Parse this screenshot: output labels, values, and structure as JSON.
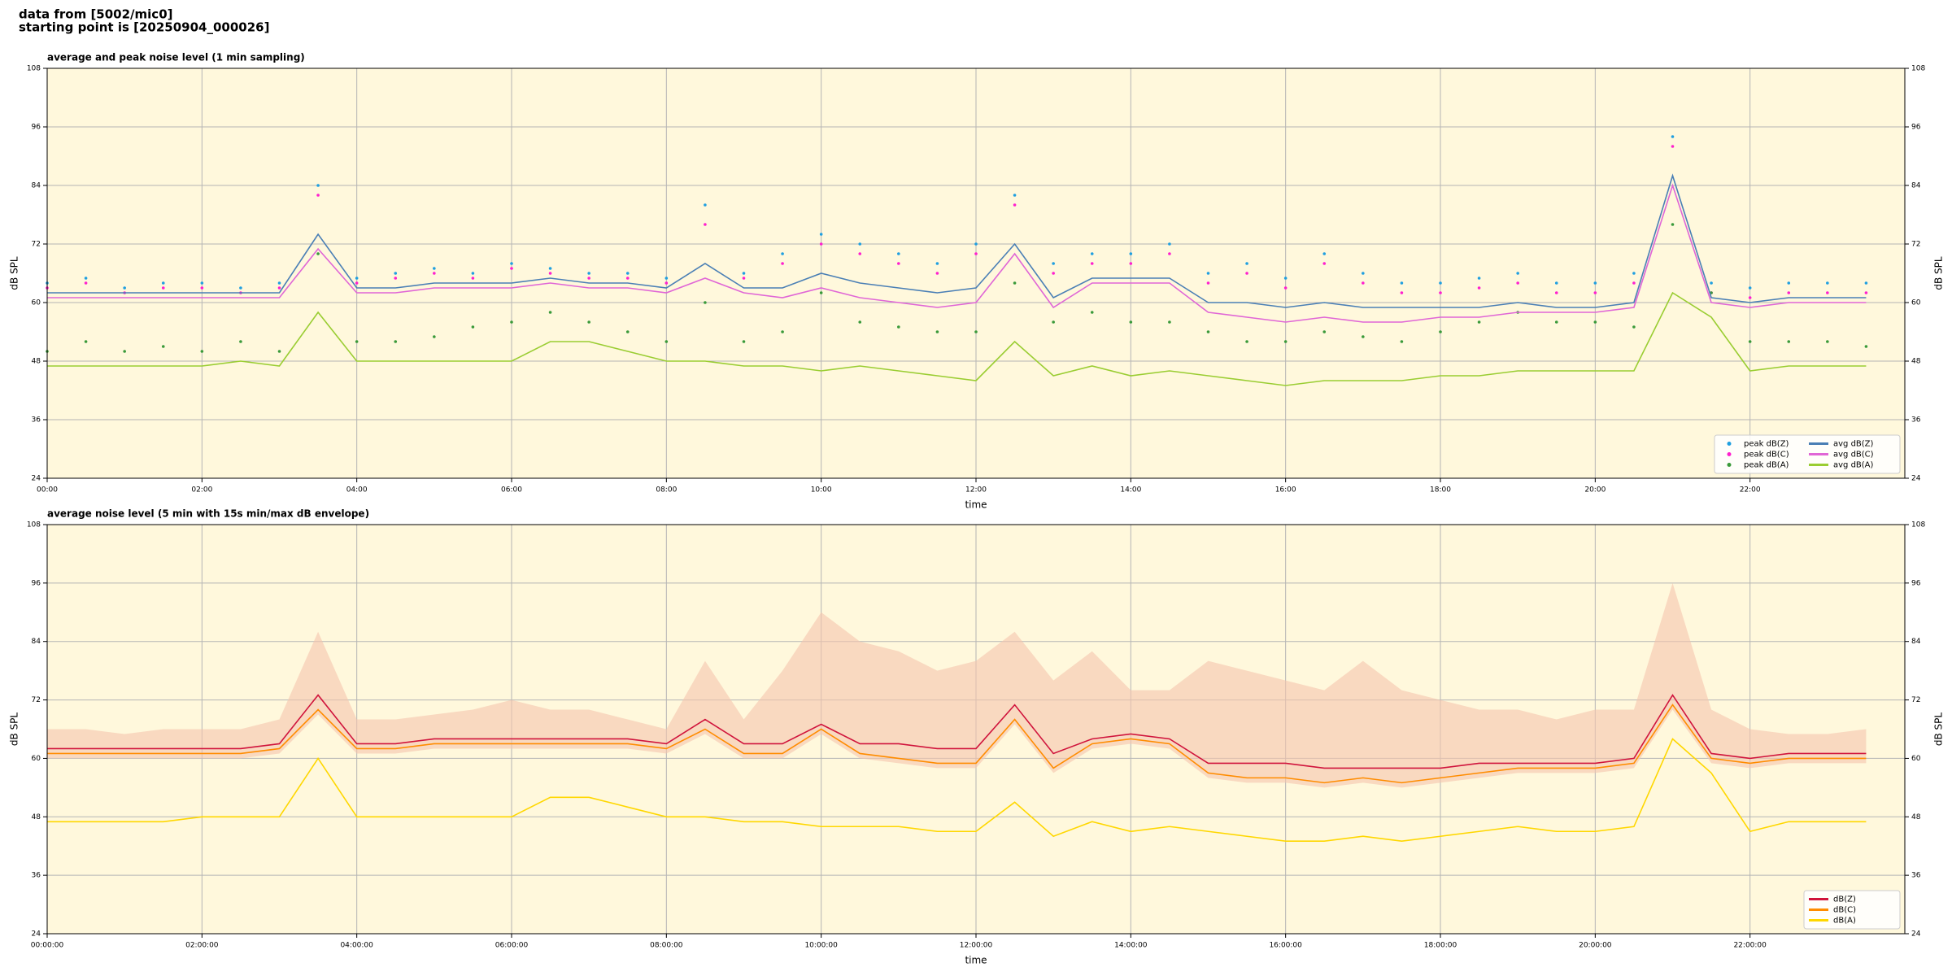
{
  "header": {
    "line1": "data from [5002/mic0]",
    "line2": "starting point is [20250904_000026]"
  },
  "chart_data": [
    {
      "type": "line",
      "title": "average and peak noise level (1 min sampling)",
      "xlabel": "time",
      "ylabel": "dB SPL",
      "x": [
        0,
        0.5,
        1,
        1.5,
        2,
        2.5,
        3,
        3.5,
        4,
        4.5,
        5,
        5.5,
        6,
        6.5,
        7,
        7.5,
        8,
        8.5,
        9,
        9.5,
        10,
        10.5,
        11,
        11.5,
        12,
        12.5,
        13,
        13.5,
        14,
        14.5,
        15,
        15.5,
        16,
        16.5,
        17,
        17.5,
        18,
        18.5,
        19,
        19.5,
        20,
        20.5,
        21,
        21.5,
        22,
        22.5,
        23,
        23.5
      ],
      "xlim": [
        0,
        24
      ],
      "xticks": [
        {
          "value": 0,
          "label": "00:00"
        },
        {
          "value": 2,
          "label": "02:00"
        },
        {
          "value": 4,
          "label": "04:00"
        },
        {
          "value": 6,
          "label": "06:00"
        },
        {
          "value": 8,
          "label": "08:00"
        },
        {
          "value": 10,
          "label": "10:00"
        },
        {
          "value": 12,
          "label": "12:00"
        },
        {
          "value": 14,
          "label": "14:00"
        },
        {
          "value": 16,
          "label": "16:00"
        },
        {
          "value": 18,
          "label": "18:00"
        },
        {
          "value": 20,
          "label": "20:00"
        },
        {
          "value": 22,
          "label": "22:00"
        }
      ],
      "ylim": [
        24,
        108
      ],
      "yticks": [
        24,
        36,
        48,
        60,
        72,
        84,
        96,
        108
      ],
      "grid": true,
      "legend": "lower right",
      "legend_columns": 2,
      "series": [
        {
          "name": "peak dB(Z)",
          "type": "scatter",
          "color": "#1f9fe0",
          "values": [
            64,
            65,
            63,
            64,
            64,
            63,
            64,
            84,
            65,
            66,
            67,
            66,
            68,
            67,
            66,
            66,
            65,
            80,
            66,
            70,
            74,
            72,
            70,
            68,
            72,
            82,
            68,
            70,
            70,
            72,
            66,
            68,
            65,
            70,
            66,
            64,
            64,
            65,
            66,
            64,
            64,
            66,
            94,
            64,
            63,
            64,
            64,
            64
          ]
        },
        {
          "name": "peak dB(C)",
          "type": "scatter",
          "color": "#ff1fce",
          "values": [
            63,
            64,
            62,
            63,
            63,
            62,
            63,
            82,
            64,
            65,
            66,
            65,
            67,
            66,
            65,
            65,
            64,
            76,
            65,
            68,
            72,
            70,
            68,
            66,
            70,
            80,
            66,
            68,
            68,
            70,
            64,
            66,
            63,
            68,
            64,
            62,
            62,
            63,
            64,
            62,
            62,
            64,
            92,
            62,
            61,
            62,
            62,
            62
          ]
        },
        {
          "name": "peak dB(A)",
          "type": "scatter",
          "color": "#3a9a3a",
          "values": [
            50,
            52,
            50,
            51,
            50,
            52,
            50,
            70,
            52,
            52,
            53,
            55,
            56,
            58,
            56,
            54,
            52,
            60,
            52,
            54,
            62,
            56,
            55,
            54,
            54,
            64,
            56,
            58,
            56,
            56,
            54,
            52,
            52,
            54,
            53,
            52,
            54,
            56,
            58,
            56,
            56,
            55,
            76,
            62,
            52,
            52,
            52,
            51
          ]
        },
        {
          "name": "avg dB(Z)",
          "type": "line",
          "color": "#4a7fb5",
          "values": [
            62,
            62,
            62,
            62,
            62,
            62,
            62,
            74,
            63,
            63,
            64,
            64,
            64,
            65,
            64,
            64,
            63,
            68,
            63,
            63,
            66,
            64,
            63,
            62,
            63,
            72,
            61,
            65,
            65,
            65,
            60,
            60,
            59,
            60,
            59,
            59,
            59,
            59,
            60,
            59,
            59,
            60,
            86,
            61,
            60,
            61,
            61,
            61
          ]
        },
        {
          "name": "avg dB(C)",
          "type": "line",
          "color": "#e066d6",
          "values": [
            61,
            61,
            61,
            61,
            61,
            61,
            61,
            71,
            62,
            62,
            63,
            63,
            63,
            64,
            63,
            63,
            62,
            65,
            62,
            61,
            63,
            61,
            60,
            59,
            60,
            70,
            59,
            64,
            64,
            64,
            58,
            57,
            56,
            57,
            56,
            56,
            57,
            57,
            58,
            58,
            58,
            59,
            84,
            60,
            59,
            60,
            60,
            60
          ]
        },
        {
          "name": "avg dB(A)",
          "type": "line",
          "color": "#9acd32",
          "values": [
            47,
            47,
            47,
            47,
            47,
            48,
            47,
            58,
            48,
            48,
            48,
            48,
            48,
            52,
            52,
            50,
            48,
            48,
            47,
            47,
            46,
            47,
            46,
            45,
            44,
            52,
            45,
            47,
            45,
            46,
            45,
            44,
            43,
            44,
            44,
            44,
            45,
            45,
            46,
            46,
            46,
            46,
            62,
            57,
            46,
            47,
            47,
            47
          ]
        }
      ]
    },
    {
      "type": "line",
      "title": "average noise level (5 min with 15s min/max dB envelope)",
      "xlabel": "time",
      "ylabel": "dB SPL",
      "x": [
        0,
        0.5,
        1,
        1.5,
        2,
        2.5,
        3,
        3.5,
        4,
        4.5,
        5,
        5.5,
        6,
        6.5,
        7,
        7.5,
        8,
        8.5,
        9,
        9.5,
        10,
        10.5,
        11,
        11.5,
        12,
        12.5,
        13,
        13.5,
        14,
        14.5,
        15,
        15.5,
        16,
        16.5,
        17,
        17.5,
        18,
        18.5,
        19,
        19.5,
        20,
        20.5,
        21,
        21.5,
        22,
        22.5,
        23,
        23.5
      ],
      "xlim": [
        0,
        24
      ],
      "xticks": [
        {
          "value": 0,
          "label": "00:00:00"
        },
        {
          "value": 2,
          "label": "02:00:00"
        },
        {
          "value": 4,
          "label": "04:00:00"
        },
        {
          "value": 6,
          "label": "06:00:00"
        },
        {
          "value": 8,
          "label": "08:00:00"
        },
        {
          "value": 10,
          "label": "10:00:00"
        },
        {
          "value": 12,
          "label": "12:00:00"
        },
        {
          "value": 14,
          "label": "14:00:00"
        },
        {
          "value": 16,
          "label": "16:00:00"
        },
        {
          "value": 18,
          "label": "18:00:00"
        },
        {
          "value": 20,
          "label": "20:00:00"
        },
        {
          "value": 22,
          "label": "22:00:00"
        }
      ],
      "ylim": [
        24,
        108
      ],
      "yticks": [
        24,
        36,
        48,
        60,
        72,
        84,
        96,
        108
      ],
      "grid": true,
      "legend": "lower right",
      "legend_columns": 1,
      "envelope": {
        "color": "#f5c4ae",
        "max": [
          66,
          66,
          65,
          66,
          66,
          66,
          68,
          86,
          68,
          68,
          69,
          70,
          72,
          70,
          70,
          68,
          66,
          80,
          68,
          78,
          90,
          84,
          82,
          78,
          80,
          86,
          76,
          82,
          74,
          74,
          80,
          78,
          76,
          74,
          80,
          74,
          72,
          70,
          70,
          68,
          70,
          70,
          96,
          70,
          66,
          65,
          65,
          66
        ],
        "min": [
          60,
          60,
          60,
          60,
          60,
          60,
          61,
          69,
          61,
          61,
          62,
          62,
          62,
          62,
          62,
          62,
          61,
          65,
          60,
          60,
          65,
          60,
          59,
          58,
          58,
          67,
          57,
          62,
          63,
          62,
          56,
          55,
          55,
          54,
          55,
          54,
          55,
          56,
          57,
          57,
          57,
          58,
          70,
          59,
          58,
          59,
          59,
          59
        ]
      },
      "series": [
        {
          "name": "dB(Z)",
          "type": "line",
          "color": "#d0143c",
          "values": [
            62,
            62,
            62,
            62,
            62,
            62,
            63,
            73,
            63,
            63,
            64,
            64,
            64,
            64,
            64,
            64,
            63,
            68,
            63,
            63,
            67,
            63,
            63,
            62,
            62,
            71,
            61,
            64,
            65,
            64,
            59,
            59,
            59,
            58,
            58,
            58,
            58,
            59,
            59,
            59,
            59,
            60,
            73,
            61,
            60,
            61,
            61,
            61
          ]
        },
        {
          "name": "dB(C)",
          "type": "line",
          "color": "#ff8c00",
          "values": [
            61,
            61,
            61,
            61,
            61,
            61,
            62,
            70,
            62,
            62,
            63,
            63,
            63,
            63,
            63,
            63,
            62,
            66,
            61,
            61,
            66,
            61,
            60,
            59,
            59,
            68,
            58,
            63,
            64,
            63,
            57,
            56,
            56,
            55,
            56,
            55,
            56,
            57,
            58,
            58,
            58,
            59,
            71,
            60,
            59,
            60,
            60,
            60
          ]
        },
        {
          "name": "dB(A)",
          "type": "line",
          "color": "#ffd700",
          "values": [
            47,
            47,
            47,
            47,
            48,
            48,
            48,
            60,
            48,
            48,
            48,
            48,
            48,
            52,
            52,
            50,
            48,
            48,
            47,
            47,
            46,
            46,
            46,
            45,
            45,
            51,
            44,
            47,
            45,
            46,
            45,
            44,
            43,
            43,
            44,
            43,
            44,
            45,
            46,
            45,
            45,
            46,
            64,
            57,
            45,
            47,
            47,
            47
          ]
        }
      ]
    }
  ]
}
